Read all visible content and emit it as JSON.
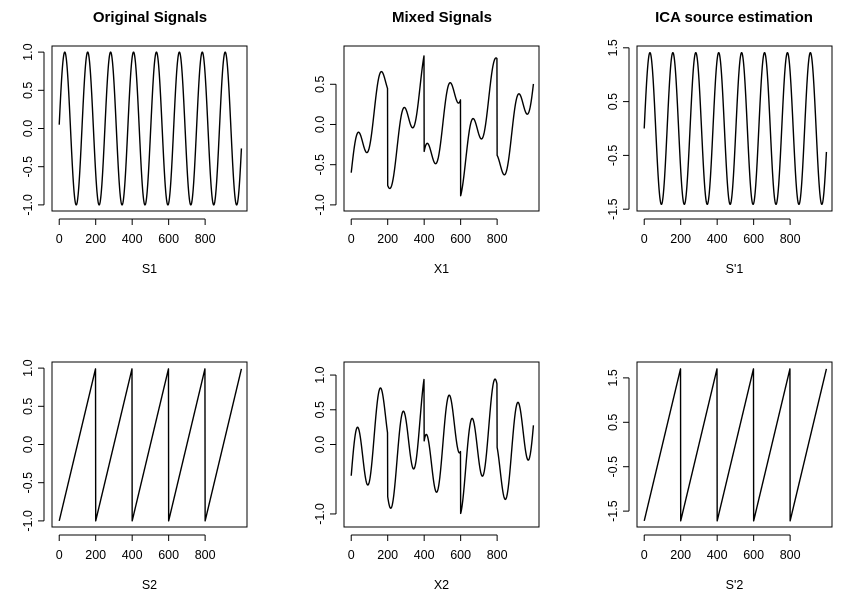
{
  "column_titles": [
    "Original Signals",
    "Mixed Signals",
    "ICA source estimation"
  ],
  "chart_data": [
    {
      "id": "s1",
      "type": "line",
      "title": "Original Signals",
      "xlabel": "S1",
      "ylabel": "",
      "xlim": [
        0,
        990
      ],
      "ylim": [
        -1.0,
        1.0
      ],
      "xticks": [
        0,
        200,
        400,
        600,
        800
      ],
      "xtick_labels": [
        "0",
        "200",
        "400",
        "600",
        "800"
      ],
      "yticks": [
        -1.0,
        -0.5,
        0.0,
        0.5,
        1.0
      ],
      "ytick_labels": [
        "-1.0",
        "-0.5",
        "0.0",
        "0.5",
        "1.0"
      ],
      "series": [
        {
          "color": "#000000",
          "shape": "sine",
          "amplitude": 1.0,
          "period": 125.66,
          "phase": 0.05,
          "n_points": 1000
        }
      ]
    },
    {
      "id": "x1",
      "type": "line",
      "title": "Mixed Signals",
      "xlabel": "X1",
      "ylabel": "",
      "xlim": [
        0,
        990
      ],
      "ylim": [
        -1.0,
        0.9
      ],
      "xticks": [
        0,
        200,
        400,
        600,
        800
      ],
      "xtick_labels": [
        "0",
        "200",
        "400",
        "600",
        "800"
      ],
      "yticks": [
        -1.0,
        -0.5,
        0.0,
        0.5
      ],
      "ytick_labels": [
        "-1.0",
        "-0.5",
        "0.0",
        "0.5"
      ],
      "series": [
        {
          "color": "#000000",
          "shape": "mix",
          "sine_weight": 0.29,
          "saw_weight": 0.6,
          "period": 125.66,
          "saw_period": 200,
          "n_points": 1000
        }
      ]
    },
    {
      "id": "s1p",
      "type": "line",
      "title": "ICA source estimation",
      "xlabel": "S'1",
      "ylabel": "",
      "xlim": [
        0,
        990
      ],
      "ylim": [
        -1.42,
        1.42
      ],
      "xticks": [
        0,
        200,
        400,
        600,
        800
      ],
      "xtick_labels": [
        "0",
        "200",
        "400",
        "600",
        "800"
      ],
      "yticks": [
        -1.5,
        -0.5,
        0.5,
        1.5
      ],
      "ytick_labels": [
        "-1.5",
        "-0.5",
        "0.5",
        "1.5"
      ],
      "series": [
        {
          "color": "#000000",
          "shape": "sine",
          "amplitude": 1.41,
          "period": 125.66,
          "phase": 0.0,
          "n_points": 1000
        }
      ]
    },
    {
      "id": "s2",
      "type": "line",
      "title": "",
      "xlabel": "S2",
      "ylabel": "",
      "xlim": [
        0,
        990
      ],
      "ylim": [
        -1.0,
        1.0
      ],
      "xticks": [
        0,
        200,
        400,
        600,
        800
      ],
      "xtick_labels": [
        "0",
        "200",
        "400",
        "600",
        "800"
      ],
      "yticks": [
        -1.0,
        -0.5,
        0.0,
        0.5,
        1.0
      ],
      "ytick_labels": [
        "-1.0",
        "-0.5",
        "0.0",
        "0.5",
        "1.0"
      ],
      "series": [
        {
          "color": "#000000",
          "shape": "sawtooth",
          "amplitude": 1.0,
          "saw_period": 200,
          "n_points": 1000
        }
      ]
    },
    {
      "id": "x2",
      "type": "line",
      "title": "",
      "xlabel": "X2",
      "ylabel": "",
      "xlim": [
        0,
        990
      ],
      "ylim": [
        -1.1,
        1.1
      ],
      "xticks": [
        0,
        200,
        400,
        600,
        800
      ],
      "xtick_labels": [
        "0",
        "200",
        "400",
        "600",
        "800"
      ],
      "yticks": [
        -1.0,
        0.0,
        0.5,
        1.0
      ],
      "ytick_labels": [
        "-1.0",
        "0.0",
        "0.5",
        "1.0"
      ],
      "series": [
        {
          "color": "#000000",
          "shape": "mix",
          "sine_weight": 0.55,
          "saw_weight": 0.45,
          "period": 125.66,
          "saw_period": 200,
          "n_points": 1000
        }
      ]
    },
    {
      "id": "s2p",
      "type": "line",
      "title": "",
      "xlabel": "S'2",
      "ylabel": "",
      "xlim": [
        0,
        990
      ],
      "ylim": [
        -1.72,
        1.72
      ],
      "xticks": [
        0,
        200,
        400,
        600,
        800
      ],
      "xtick_labels": [
        "0",
        "200",
        "400",
        "600",
        "800"
      ],
      "yticks": [
        -1.5,
        -0.5,
        0.5,
        1.5
      ],
      "ytick_labels": [
        "-1.5",
        "-0.5",
        "0.5",
        "1.5"
      ],
      "series": [
        {
          "color": "#000000",
          "shape": "sawtooth",
          "amplitude": 1.72,
          "saw_period": 200,
          "n_points": 1000
        }
      ]
    }
  ]
}
